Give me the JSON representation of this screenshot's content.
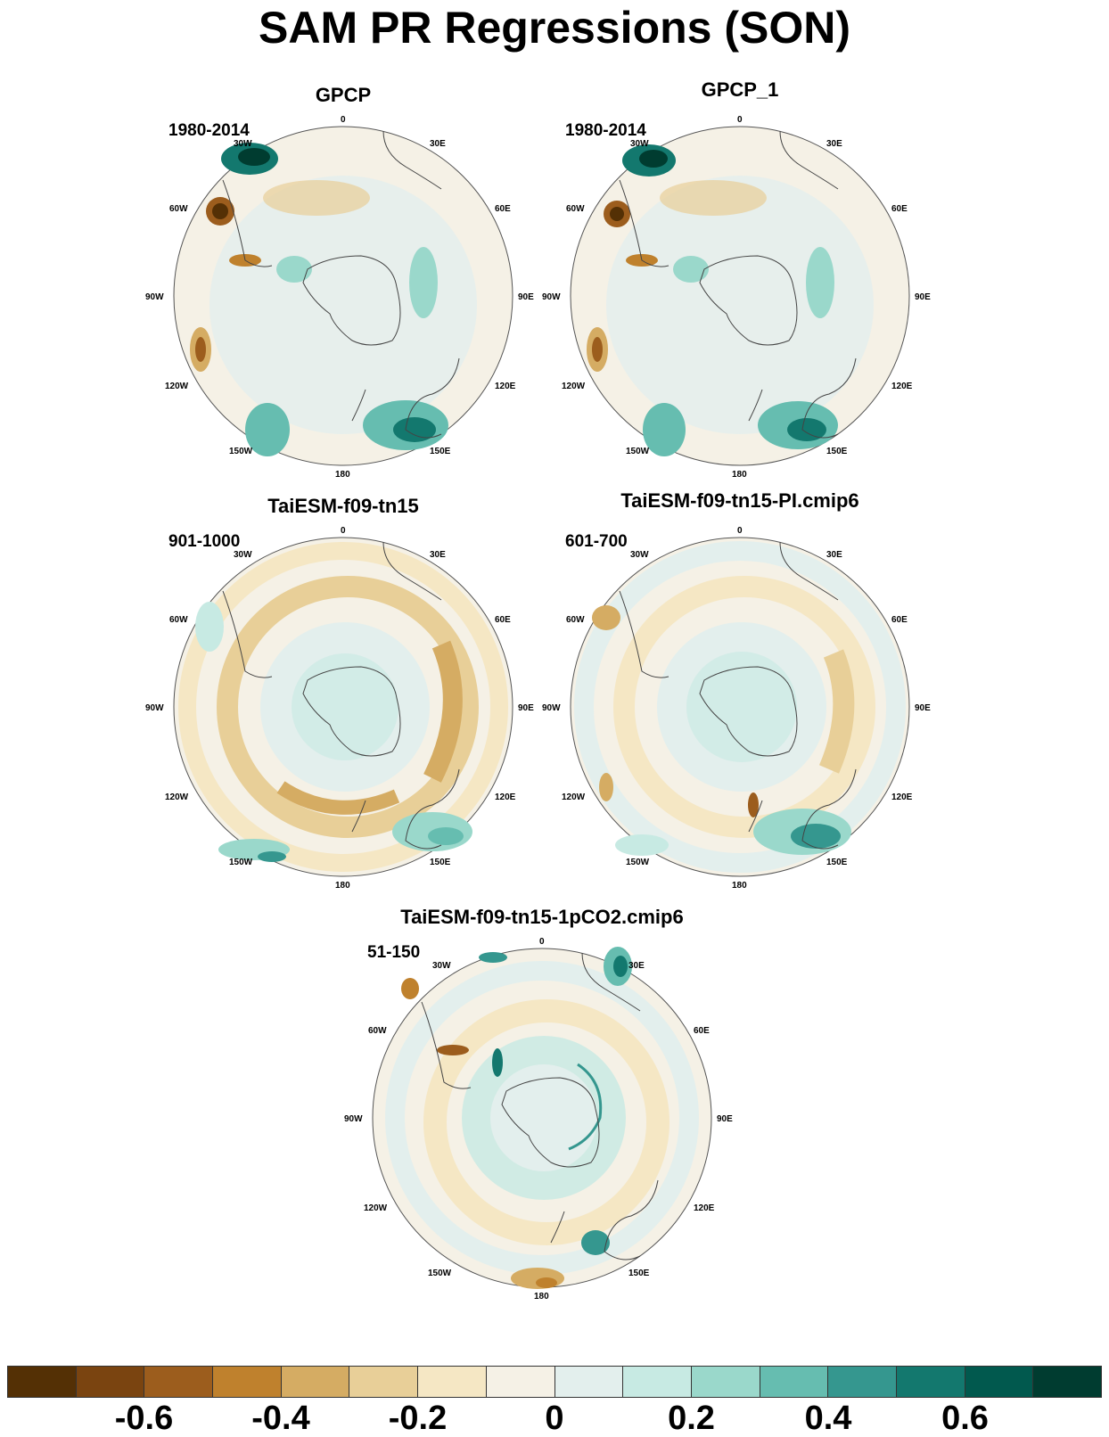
{
  "title": "SAM PR Regressions (SON)",
  "panels": [
    {
      "id": "gpcp",
      "title": "GPCP",
      "period": "1980-2014"
    },
    {
      "id": "gpcp1",
      "title": "GPCP_1",
      "period": "1980-2014"
    },
    {
      "id": "taiesm",
      "title": "TaiESM-f09-tn15",
      "period": "901-1000"
    },
    {
      "id": "taiesm-pi",
      "title": "TaiESM-f09-tn15-PI.cmip6",
      "period": "601-700"
    },
    {
      "id": "taiesm-1pco2",
      "title": "TaiESM-f09-tn15-1pCO2.cmip6",
      "period": "51-150"
    }
  ],
  "longitude_labels": [
    "0",
    "30E",
    "60E",
    "90E",
    "120E",
    "150E",
    "180",
    "150W",
    "120W",
    "90W",
    "60W",
    "30W"
  ],
  "colorbar": {
    "colors": [
      "#543005",
      "#7a4410",
      "#9c5d1d",
      "#bf812d",
      "#d5ac63",
      "#e8cf98",
      "#f5e7c4",
      "#f5f1e6",
      "#e3efed",
      "#c7eae3",
      "#9ad8cb",
      "#66bdb0",
      "#35978f",
      "#13786e",
      "#01594e",
      "#003c30"
    ],
    "tick_labels": [
      "-0.6",
      "-0.4",
      "-0.2",
      "0",
      "0.2",
      "0.4",
      "0.6"
    ],
    "tick_values": [
      -0.6,
      -0.4,
      -0.2,
      0,
      0.2,
      0.4,
      0.6
    ],
    "range": [
      -0.8,
      0.8
    ]
  }
}
